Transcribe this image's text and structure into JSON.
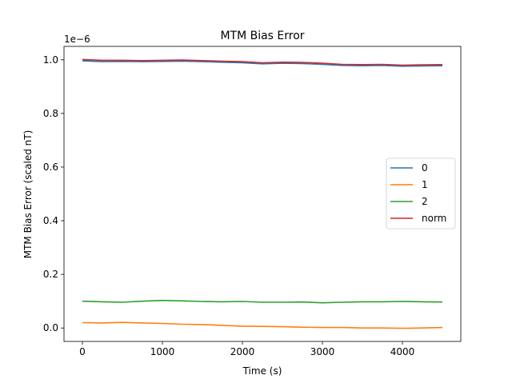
{
  "chart_data": {
    "type": "line",
    "title": "MTM Bias Error",
    "xlabel": "Time (s)",
    "ylabel": "MTM Bias Error (scaled nT)",
    "y_offset_label": "1e−6",
    "xlim": [
      -230,
      4730
    ],
    "ylim": [
      -0.05,
      1.05
    ],
    "xticks": [
      0,
      1000,
      2000,
      3000,
      4000
    ],
    "xtick_labels": [
      "0",
      "1000",
      "2000",
      "3000",
      "4000"
    ],
    "yticks": [
      0.0,
      0.2,
      0.4,
      0.6,
      0.8,
      1.0
    ],
    "ytick_labels": [
      "0.0",
      "0.2",
      "0.4",
      "0.6",
      "0.8",
      "1.0"
    ],
    "grid": false,
    "legend_position": "center-right",
    "series": [
      {
        "name": "0",
        "color": "#1f77b4",
        "x": [
          0,
          250,
          500,
          750,
          1000,
          1250,
          1500,
          1750,
          2000,
          2250,
          2500,
          2750,
          3000,
          3250,
          3500,
          3750,
          4000,
          4250,
          4500
        ],
        "y": [
          0.996,
          0.993,
          0.994,
          0.993,
          0.994,
          0.995,
          0.993,
          0.991,
          0.989,
          0.985,
          0.987,
          0.986,
          0.983,
          0.979,
          0.978,
          0.979,
          0.976,
          0.977,
          0.978
        ]
      },
      {
        "name": "1",
        "color": "#ff7f0e",
        "x": [
          0,
          250,
          500,
          750,
          1000,
          1250,
          1500,
          1750,
          2000,
          2250,
          2500,
          2750,
          3000,
          3250,
          3500,
          3750,
          4000,
          4250,
          4500
        ],
        "y": [
          0.02,
          0.019,
          0.021,
          0.019,
          0.017,
          0.014,
          0.013,
          0.01,
          0.007,
          0.006,
          0.005,
          0.003,
          0.002,
          0.002,
          0.0,
          0.0,
          -0.001,
          0.0,
          0.002
        ]
      },
      {
        "name": "2",
        "color": "#2ca02c",
        "x": [
          0,
          250,
          500,
          750,
          1000,
          1250,
          1500,
          1750,
          2000,
          2250,
          2500,
          2750,
          3000,
          3250,
          3500,
          3750,
          4000,
          4250,
          4500
        ],
        "y": [
          0.1,
          0.098,
          0.096,
          0.1,
          0.103,
          0.101,
          0.099,
          0.098,
          0.099,
          0.096,
          0.096,
          0.097,
          0.094,
          0.096,
          0.098,
          0.098,
          0.099,
          0.098,
          0.097
        ]
      },
      {
        "name": "norm",
        "color": "#d62728",
        "x": [
          0,
          250,
          500,
          750,
          1000,
          1250,
          1500,
          1750,
          2000,
          2250,
          2500,
          2750,
          3000,
          3250,
          3500,
          3750,
          4000,
          4250,
          4500
        ],
        "y": [
          1.001,
          0.998,
          0.998,
          0.997,
          0.998,
          0.999,
          0.997,
          0.995,
          0.993,
          0.989,
          0.991,
          0.99,
          0.987,
          0.983,
          0.982,
          0.983,
          0.98,
          0.981,
          0.982
        ]
      }
    ]
  }
}
